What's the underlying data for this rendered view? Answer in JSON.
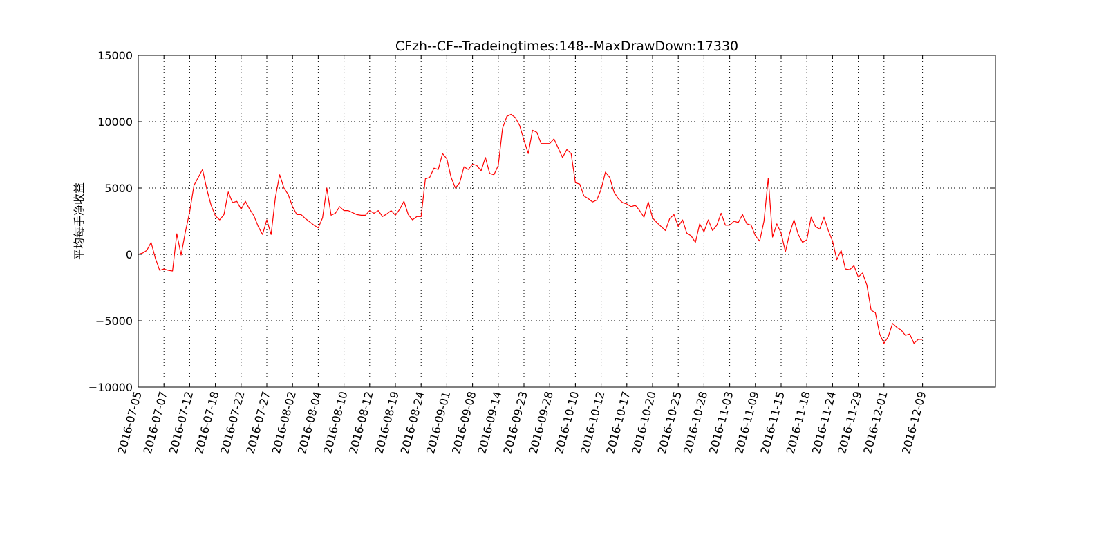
{
  "chart_data": {
    "type": "line",
    "title": "CFzh--CF--Tradeingtimes:148--MaxDrawDown:17330",
    "ylabel": "平均每手净收益",
    "xlabel": "",
    "ylim": [
      -10000,
      15000
    ],
    "yticks": [
      -10000,
      -5000,
      0,
      5000,
      10000,
      15000
    ],
    "ytick_labels": [
      "−10000",
      "−5000",
      "0",
      "5000",
      "10000",
      "15000"
    ],
    "xlim": [
      0,
      200
    ],
    "xticks": [
      {
        "x": 0,
        "label": "2016-07-05"
      },
      {
        "x": 6,
        "label": "2016-07-07"
      },
      {
        "x": 12,
        "label": "2016-07-12"
      },
      {
        "x": 18,
        "label": "2016-07-18"
      },
      {
        "x": 24,
        "label": "2016-07-22"
      },
      {
        "x": 30,
        "label": "2016-07-27"
      },
      {
        "x": 36,
        "label": "2016-08-02"
      },
      {
        "x": 42,
        "label": "2016-08-04"
      },
      {
        "x": 48,
        "label": "2016-08-10"
      },
      {
        "x": 54,
        "label": "2016-08-12"
      },
      {
        "x": 60,
        "label": "2016-08-19"
      },
      {
        "x": 66,
        "label": "2016-08-24"
      },
      {
        "x": 72,
        "label": "2016-09-01"
      },
      {
        "x": 78,
        "label": "2016-09-08"
      },
      {
        "x": 84,
        "label": "2016-09-14"
      },
      {
        "x": 90,
        "label": "2016-09-23"
      },
      {
        "x": 96,
        "label": "2016-09-28"
      },
      {
        "x": 102,
        "label": "2016-10-10"
      },
      {
        "x": 108,
        "label": "2016-10-12"
      },
      {
        "x": 114,
        "label": "2016-10-17"
      },
      {
        "x": 120,
        "label": "2016-10-20"
      },
      {
        "x": 126,
        "label": "2016-10-25"
      },
      {
        "x": 132,
        "label": "2016-10-28"
      },
      {
        "x": 138,
        "label": "2016-11-03"
      },
      {
        "x": 144,
        "label": "2016-11-09"
      },
      {
        "x": 150,
        "label": "2016-11-15"
      },
      {
        "x": 156,
        "label": "2016-11-18"
      },
      {
        "x": 162,
        "label": "2016-11-24"
      },
      {
        "x": 168,
        "label": "2016-11-29"
      },
      {
        "x": 174,
        "label": "2016-12-01"
      },
      {
        "x": 183,
        "label": "2016-12-09"
      }
    ],
    "grid": true,
    "series": [
      {
        "color": "#ff0000",
        "x": [
          0,
          1,
          2,
          3,
          4,
          5,
          6,
          7,
          8,
          9,
          10,
          11,
          12,
          13,
          14,
          15,
          16,
          17,
          18,
          19,
          20,
          21,
          22,
          23,
          24,
          25,
          26,
          27,
          28,
          29,
          30,
          31,
          32,
          33,
          34,
          35,
          36,
          37,
          38,
          39,
          40,
          41,
          42,
          43,
          44,
          45,
          46,
          47,
          48,
          49,
          50,
          51,
          52,
          53,
          54,
          55,
          56,
          57,
          58,
          59,
          60,
          61,
          62,
          63,
          64,
          65,
          66,
          67,
          68,
          69,
          70,
          71,
          72,
          73,
          74,
          75,
          76,
          77,
          78,
          79,
          80,
          81,
          82,
          83,
          84,
          85,
          86,
          87,
          88,
          89,
          90,
          91,
          92,
          93,
          94,
          95,
          96,
          97,
          98,
          99,
          100,
          101,
          102,
          103,
          104,
          105,
          106,
          107,
          108,
          109,
          110,
          111,
          112,
          113,
          114,
          115,
          116,
          117,
          118,
          119,
          120,
          121,
          122,
          123,
          124,
          125,
          126,
          127,
          128,
          129,
          130,
          131,
          132,
          133,
          134,
          135,
          136,
          137,
          138,
          139,
          140,
          141,
          142,
          143,
          144,
          145,
          146,
          147,
          148,
          149,
          150,
          151,
          152,
          153,
          154,
          155,
          156,
          157,
          158,
          159,
          160,
          161,
          162,
          163,
          164,
          165,
          166,
          167,
          168,
          169,
          170,
          171,
          172,
          173,
          174,
          175,
          176,
          177,
          178,
          179,
          180,
          181,
          182,
          183
        ],
        "y": [
          0,
          100,
          300,
          900,
          -300,
          -1200,
          -1100,
          -1200,
          -1250,
          1550,
          -50,
          1700,
          3200,
          5200,
          5800,
          6400,
          4900,
          3700,
          2900,
          2600,
          3000,
          4700,
          3900,
          4000,
          3400,
          4000,
          3400,
          2900,
          2100,
          1500,
          2600,
          1500,
          4300,
          6000,
          5000,
          4500,
          3600,
          3000,
          3000,
          2700,
          2450,
          2200,
          2000,
          2750,
          5000,
          2950,
          3100,
          3600,
          3300,
          3300,
          3150,
          3000,
          2950,
          2950,
          3300,
          3100,
          3300,
          2850,
          3050,
          3300,
          2950,
          3400,
          4000,
          3000,
          2600,
          2850,
          2850,
          5700,
          5800,
          6500,
          6400,
          7600,
          7200,
          5800,
          5000,
          5400,
          6600,
          6400,
          6800,
          6700,
          6300,
          7300,
          6100,
          6000,
          6700,
          9500,
          10400,
          10550,
          10300,
          9700,
          8600,
          7600,
          9350,
          9200,
          8350,
          8350,
          8350,
          8700,
          8000,
          7300,
          7900,
          7600,
          5400,
          5300,
          4400,
          4200,
          3950,
          4100,
          4900,
          6200,
          5800,
          4700,
          4200,
          3900,
          3800,
          3600,
          3700,
          3300,
          2800,
          3950,
          2750,
          2400,
          2100,
          1800,
          2700,
          3000,
          2100,
          2600,
          1600,
          1400,
          900,
          2300,
          1700,
          2600,
          1800,
          2200,
          3100,
          2200,
          2200,
          2500,
          2400,
          3000,
          2300,
          2200,
          1400,
          1000,
          2500,
          5750,
          1300,
          2300,
          1600,
          200,
          1600,
          2600,
          1500,
          900,
          1100,
          2800,
          2100,
          1900,
          2800,
          1800,
          1000,
          -400,
          300,
          -1100,
          -1150,
          -850,
          -1700,
          -1400,
          -2300,
          -4200,
          -4400,
          -6000,
          -6700,
          -6200,
          -5200,
          -5500,
          -5700,
          -6100,
          -6000,
          -6700,
          -6400,
          -6400
        ]
      }
    ]
  }
}
